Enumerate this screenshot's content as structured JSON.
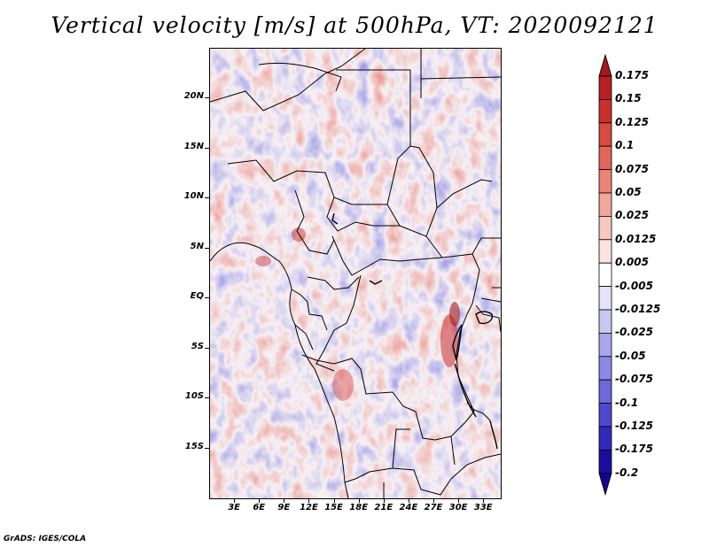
{
  "title": "Vertical velocity [m/s] at 500hPa, VT: 2020092121",
  "credit": "GrADS: IGES/COLA",
  "map": {
    "lon_range": [
      0,
      35
    ],
    "lat_range": [
      -20,
      25
    ],
    "lat_labels": [
      {
        "lat": 20,
        "text": "20N"
      },
      {
        "lat": 15,
        "text": "15N"
      },
      {
        "lat": 10,
        "text": "10N"
      },
      {
        "lat": 5,
        "text": "5N"
      },
      {
        "lat": 0,
        "text": "EQ"
      },
      {
        "lat": -5,
        "text": "5S"
      },
      {
        "lat": -10,
        "text": "10S"
      },
      {
        "lat": -15,
        "text": "15S"
      }
    ],
    "lon_labels": [
      {
        "lon": 3,
        "text": "3E"
      },
      {
        "lon": 6,
        "text": "6E"
      },
      {
        "lon": 9,
        "text": "9E"
      },
      {
        "lon": 12,
        "text": "12E"
      },
      {
        "lon": 15,
        "text": "15E"
      },
      {
        "lon": 18,
        "text": "18E"
      },
      {
        "lon": 21,
        "text": "21E"
      },
      {
        "lon": 24,
        "text": "24E"
      },
      {
        "lon": 27,
        "text": "27E"
      },
      {
        "lon": 30,
        "text": "30E"
      },
      {
        "lon": 33,
        "text": "33E"
      }
    ]
  },
  "colorbar": {
    "labels": [
      "0.175",
      "0.15",
      "0.125",
      "0.1",
      "0.075",
      "0.05",
      "0.025",
      "0.0125",
      "0.005",
      "-0.005",
      "-0.0125",
      "-0.025",
      "-0.05",
      "-0.075",
      "-0.1",
      "-0.125",
      "-0.175",
      "-0.2"
    ],
    "colors": [
      "#a01a1e",
      "#b42024",
      "#c8302e",
      "#d84a44",
      "#e2655c",
      "#ea8478",
      "#f2a69c",
      "#f7c7c0",
      "#fbe3df",
      "#ffffff",
      "#e3e3f9",
      "#c8c8f3",
      "#aaa6ec",
      "#8c88e4",
      "#6e68da",
      "#5048cc",
      "#3428b8",
      "#1c0c9c",
      "#14068a"
    ]
  }
}
